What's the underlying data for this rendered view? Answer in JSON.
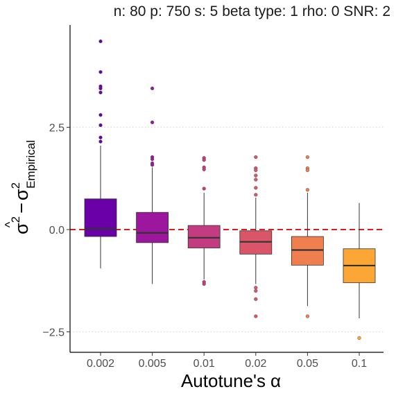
{
  "chart_data": {
    "type": "boxplot",
    "title": "n: 80 p: 750 s: 5 beta type: 1 rho: 0 SNR: 2",
    "xlabel": {
      "base": "Autotune's",
      "symbol": "α"
    },
    "ylabel": {
      "hat": "σ",
      "sup1": "2",
      "minus": "−",
      "sigma": "σ",
      "sup2": "2",
      "sub": "Empirical"
    },
    "categories": [
      "0.002",
      "0.005",
      "0.01",
      "0.02",
      "0.05",
      "0.1"
    ],
    "yticks": [
      {
        "value": 2.5,
        "label": "2.5"
      },
      {
        "value": 0.0,
        "label": "0.0"
      },
      {
        "value": -2.5,
        "label": "−2.5"
      }
    ],
    "ylim": [
      -3.0,
      5.0
    ],
    "grid": "horizontal dotted at major ticks",
    "reference_line": {
      "value": 0.0,
      "color": "#e31a1c",
      "style": "dashed"
    },
    "boxes": [
      {
        "category": "0.002",
        "color": "#6a00a8",
        "q1": -0.17,
        "median": 0.02,
        "q3": 0.75,
        "whisker_low": -0.95,
        "whisker_high": 2.05,
        "outliers": [
          4.6,
          3.85,
          3.5,
          3.45,
          3.35,
          2.8,
          2.55,
          2.25,
          2.15
        ]
      },
      {
        "category": "0.005",
        "color": "#9c179e",
        "q1": -0.32,
        "median": -0.08,
        "q3": 0.42,
        "whisker_low": -1.33,
        "whisker_high": 1.52,
        "outliers": [
          3.45,
          2.62,
          1.77,
          1.72,
          1.62,
          1.58
        ]
      },
      {
        "category": "0.01",
        "color": "#c33c81",
        "q1": -0.45,
        "median": -0.2,
        "q3": 0.1,
        "whisker_low": -1.22,
        "whisker_high": 0.9,
        "outliers": [
          1.75,
          1.7,
          1.52,
          1.47,
          1.0,
          -1.28,
          -1.33
        ]
      },
      {
        "category": "0.02",
        "color": "#d95567",
        "q1": -0.6,
        "median": -0.3,
        "q3": -0.03,
        "whisker_low": -1.33,
        "whisker_high": 0.78,
        "outliers": [
          1.77,
          1.5,
          1.45,
          1.32,
          1.22,
          1.02,
          0.85,
          -1.42,
          -1.5,
          -1.7,
          -2.12
        ]
      },
      {
        "category": "0.05",
        "color": "#f07f4f",
        "q1": -0.87,
        "median": -0.5,
        "q3": -0.17,
        "whisker_low": -1.87,
        "whisker_high": 0.9,
        "outliers": [
          1.77,
          1.5,
          1.45,
          0.97,
          -2.12
        ]
      },
      {
        "category": "0.1",
        "color": "#fca636",
        "q1": -1.3,
        "median": -0.88,
        "q3": -0.47,
        "whisker_low": -2.17,
        "whisker_high": 0.65,
        "outliers": [
          -2.65
        ]
      }
    ]
  }
}
